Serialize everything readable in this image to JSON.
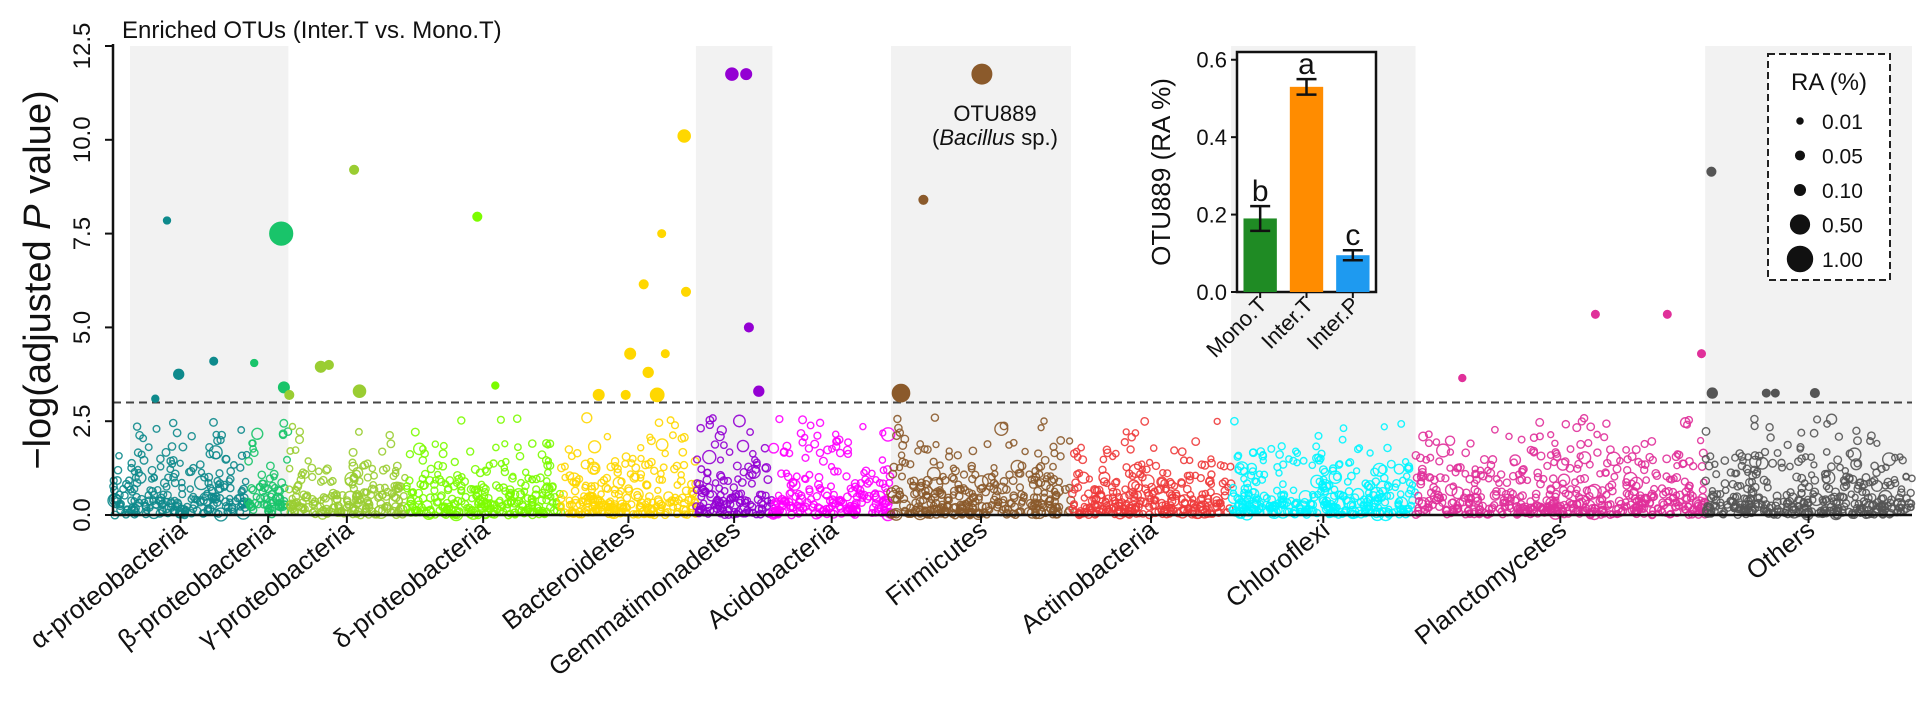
{
  "chart_data": {
    "type": "scatter",
    "title": "Enriched OTUs (Inter.T vs. Mono.T)",
    "ylabel_prefix": "−log(adjusted ",
    "ylabel_italic": "P",
    "ylabel_suffix": " value)",
    "ylim": [
      0,
      12.5
    ],
    "yticks": [
      0.0,
      2.5,
      5.0,
      7.5,
      10.0,
      12.5
    ],
    "ytick_labels": [
      "0.0",
      "2.5",
      "5.0",
      "7.5",
      "10.0",
      "12.5"
    ],
    "threshold": 3.0,
    "groups": [
      {
        "name": "α-proteobacteria",
        "color": "#0E8A8C",
        "range": [
          0,
          150
        ],
        "shaded": true
      },
      {
        "name": "β-proteobacteria",
        "color": "#19C46A",
        "range": [
          150,
          195
        ],
        "shaded": true
      },
      {
        "name": "γ-proteobacteria",
        "color": "#9ACD32",
        "range": [
          195,
          325
        ],
        "shaded": false
      },
      {
        "name": "δ-proteobacteria",
        "color": "#7CFC00",
        "range": [
          325,
          498
        ],
        "shaded": false
      },
      {
        "name": "Bacteroidetes",
        "color": "#FFD700",
        "range": [
          498,
          648
        ],
        "shaded": false
      },
      {
        "name": "Gemmatimonadetes",
        "color": "#9400D3",
        "range": [
          648,
          733
        ],
        "shaded": true
      },
      {
        "name": "Acidobacteria",
        "color": "#FF00FF",
        "range": [
          733,
          865
        ],
        "shaded": false
      },
      {
        "name": "Firmicutes",
        "color": "#8B5A2B",
        "range": [
          865,
          1065
        ],
        "shaded": true
      },
      {
        "name": "Actinobacteria",
        "color": "#EE3B3B",
        "range": [
          1065,
          1243
        ],
        "shaded": false
      },
      {
        "name": "Chloroflexi",
        "color": "#00F5FF",
        "range": [
          1243,
          1448
        ],
        "shaded": true
      },
      {
        "name": "Planctomycetes",
        "color": "#E0309A",
        "range": [
          1448,
          1770
        ],
        "shaded": false
      },
      {
        "name": "Others",
        "color": "#555555",
        "range": [
          1770,
          2000
        ],
        "shaded": true
      }
    ],
    "enriched_points": [
      {
        "group": "α-proteobacteria",
        "x": 60,
        "y": 7.85,
        "ra": 0.02
      },
      {
        "group": "α-proteobacteria",
        "x": 73,
        "y": 3.75,
        "ra": 0.08
      },
      {
        "group": "α-proteobacteria",
        "x": 112,
        "y": 4.1,
        "ra": 0.03
      },
      {
        "group": "α-proteobacteria",
        "x": 47,
        "y": 3.1,
        "ra": 0.02
      },
      {
        "group": "β-proteobacteria",
        "x": 157,
        "y": 4.05,
        "ra": 0.02
      },
      {
        "group": "β-proteobacteria",
        "x": 187,
        "y": 7.5,
        "ra": 0.8
      },
      {
        "group": "β-proteobacteria",
        "x": 190,
        "y": 3.4,
        "ra": 0.1
      },
      {
        "group": "γ-proteobacteria",
        "x": 196,
        "y": 3.2,
        "ra": 0.05
      },
      {
        "group": "γ-proteobacteria",
        "x": 231,
        "y": 3.95,
        "ra": 0.1
      },
      {
        "group": "γ-proteobacteria",
        "x": 240,
        "y": 4.0,
        "ra": 0.05
      },
      {
        "group": "γ-proteobacteria",
        "x": 268,
        "y": 9.2,
        "ra": 0.05
      },
      {
        "group": "γ-proteobacteria",
        "x": 274,
        "y": 3.3,
        "ra": 0.15
      },
      {
        "group": "δ-proteobacteria",
        "x": 405,
        "y": 7.95,
        "ra": 0.05
      },
      {
        "group": "δ-proteobacteria",
        "x": 425,
        "y": 3.45,
        "ra": 0.02
      },
      {
        "group": "Bacteroidetes",
        "x": 540,
        "y": 3.2,
        "ra": 0.1
      },
      {
        "group": "Bacteroidetes",
        "x": 570,
        "y": 3.2,
        "ra": 0.05
      },
      {
        "group": "Bacteroidetes",
        "x": 575,
        "y": 4.3,
        "ra": 0.1
      },
      {
        "group": "Bacteroidetes",
        "x": 590,
        "y": 6.15,
        "ra": 0.05
      },
      {
        "group": "Bacteroidetes",
        "x": 595,
        "y": 3.8,
        "ra": 0.08
      },
      {
        "group": "Bacteroidetes",
        "x": 605,
        "y": 3.2,
        "ra": 0.2
      },
      {
        "group": "Bacteroidetes",
        "x": 610,
        "y": 7.5,
        "ra": 0.03
      },
      {
        "group": "Bacteroidetes",
        "x": 614,
        "y": 4.3,
        "ra": 0.03
      },
      {
        "group": "Bacteroidetes",
        "x": 635,
        "y": 10.1,
        "ra": 0.15
      },
      {
        "group": "Bacteroidetes",
        "x": 637,
        "y": 5.95,
        "ra": 0.05
      },
      {
        "group": "Gemmatimonadetes",
        "x": 688,
        "y": 11.75,
        "ra": 0.15
      },
      {
        "group": "Gemmatimonadetes",
        "x": 704,
        "y": 11.75,
        "ra": 0.1
      },
      {
        "group": "Gemmatimonadetes",
        "x": 707,
        "y": 5.0,
        "ra": 0.05
      },
      {
        "group": "Gemmatimonadetes",
        "x": 718,
        "y": 3.3,
        "ra": 0.08
      },
      {
        "group": "Firmicutes",
        "x": 876,
        "y": 3.25,
        "ra": 0.4
      },
      {
        "group": "Firmicutes",
        "x": 901,
        "y": 8.4,
        "ra": 0.05
      },
      {
        "group": "Firmicutes",
        "x": 966,
        "y": 11.75,
        "ra": 0.55
      },
      {
        "group": "Planctomycetes",
        "x": 1500,
        "y": 3.65,
        "ra": 0.02
      },
      {
        "group": "Planctomycetes",
        "x": 1648,
        "y": 5.35,
        "ra": 0.03
      },
      {
        "group": "Planctomycetes",
        "x": 1728,
        "y": 5.35,
        "ra": 0.03
      },
      {
        "group": "Planctomycetes",
        "x": 1766,
        "y": 4.3,
        "ra": 0.03
      },
      {
        "group": "Others",
        "x": 1777,
        "y": 9.15,
        "ra": 0.05
      },
      {
        "group": "Others",
        "x": 1778,
        "y": 3.25,
        "ra": 0.08
      },
      {
        "group": "Others",
        "x": 1838,
        "y": 3.25,
        "ra": 0.03
      },
      {
        "group": "Others",
        "x": 1848,
        "y": 3.25,
        "ra": 0.03
      },
      {
        "group": "Others",
        "x": 1892,
        "y": 3.25,
        "ra": 0.05
      }
    ],
    "background_points_note": "",
    "annotation": {
      "line1": "OTU889",
      "line2_open": "(",
      "line2_italic": "Bacillus",
      "line2_rest": " sp.)"
    },
    "inset": {
      "type": "bar",
      "ylabel": "OTU889 (RA %)",
      "ylim": [
        0,
        0.62
      ],
      "yticks": [
        0.0,
        0.2,
        0.4,
        0.6
      ],
      "ytick_labels": [
        "0.0",
        "0.2",
        "0.4",
        "0.6"
      ],
      "categories": [
        "Mono.T",
        "Inter.T",
        "Inter.P"
      ],
      "values": [
        0.19,
        0.53,
        0.095
      ],
      "errors": [
        0.032,
        0.02,
        0.013
      ],
      "letters": [
        "b",
        "a",
        "c"
      ],
      "colors": [
        "#1F8B24",
        "#FF8C00",
        "#1E9AF0"
      ]
    },
    "legend": {
      "title": "RA (%)",
      "placement": "top-right",
      "labels": [
        "0.01",
        "0.05",
        "0.10",
        "0.50",
        "1.00"
      ],
      "values": [
        0.01,
        0.05,
        0.1,
        0.5,
        1.0
      ]
    }
  }
}
